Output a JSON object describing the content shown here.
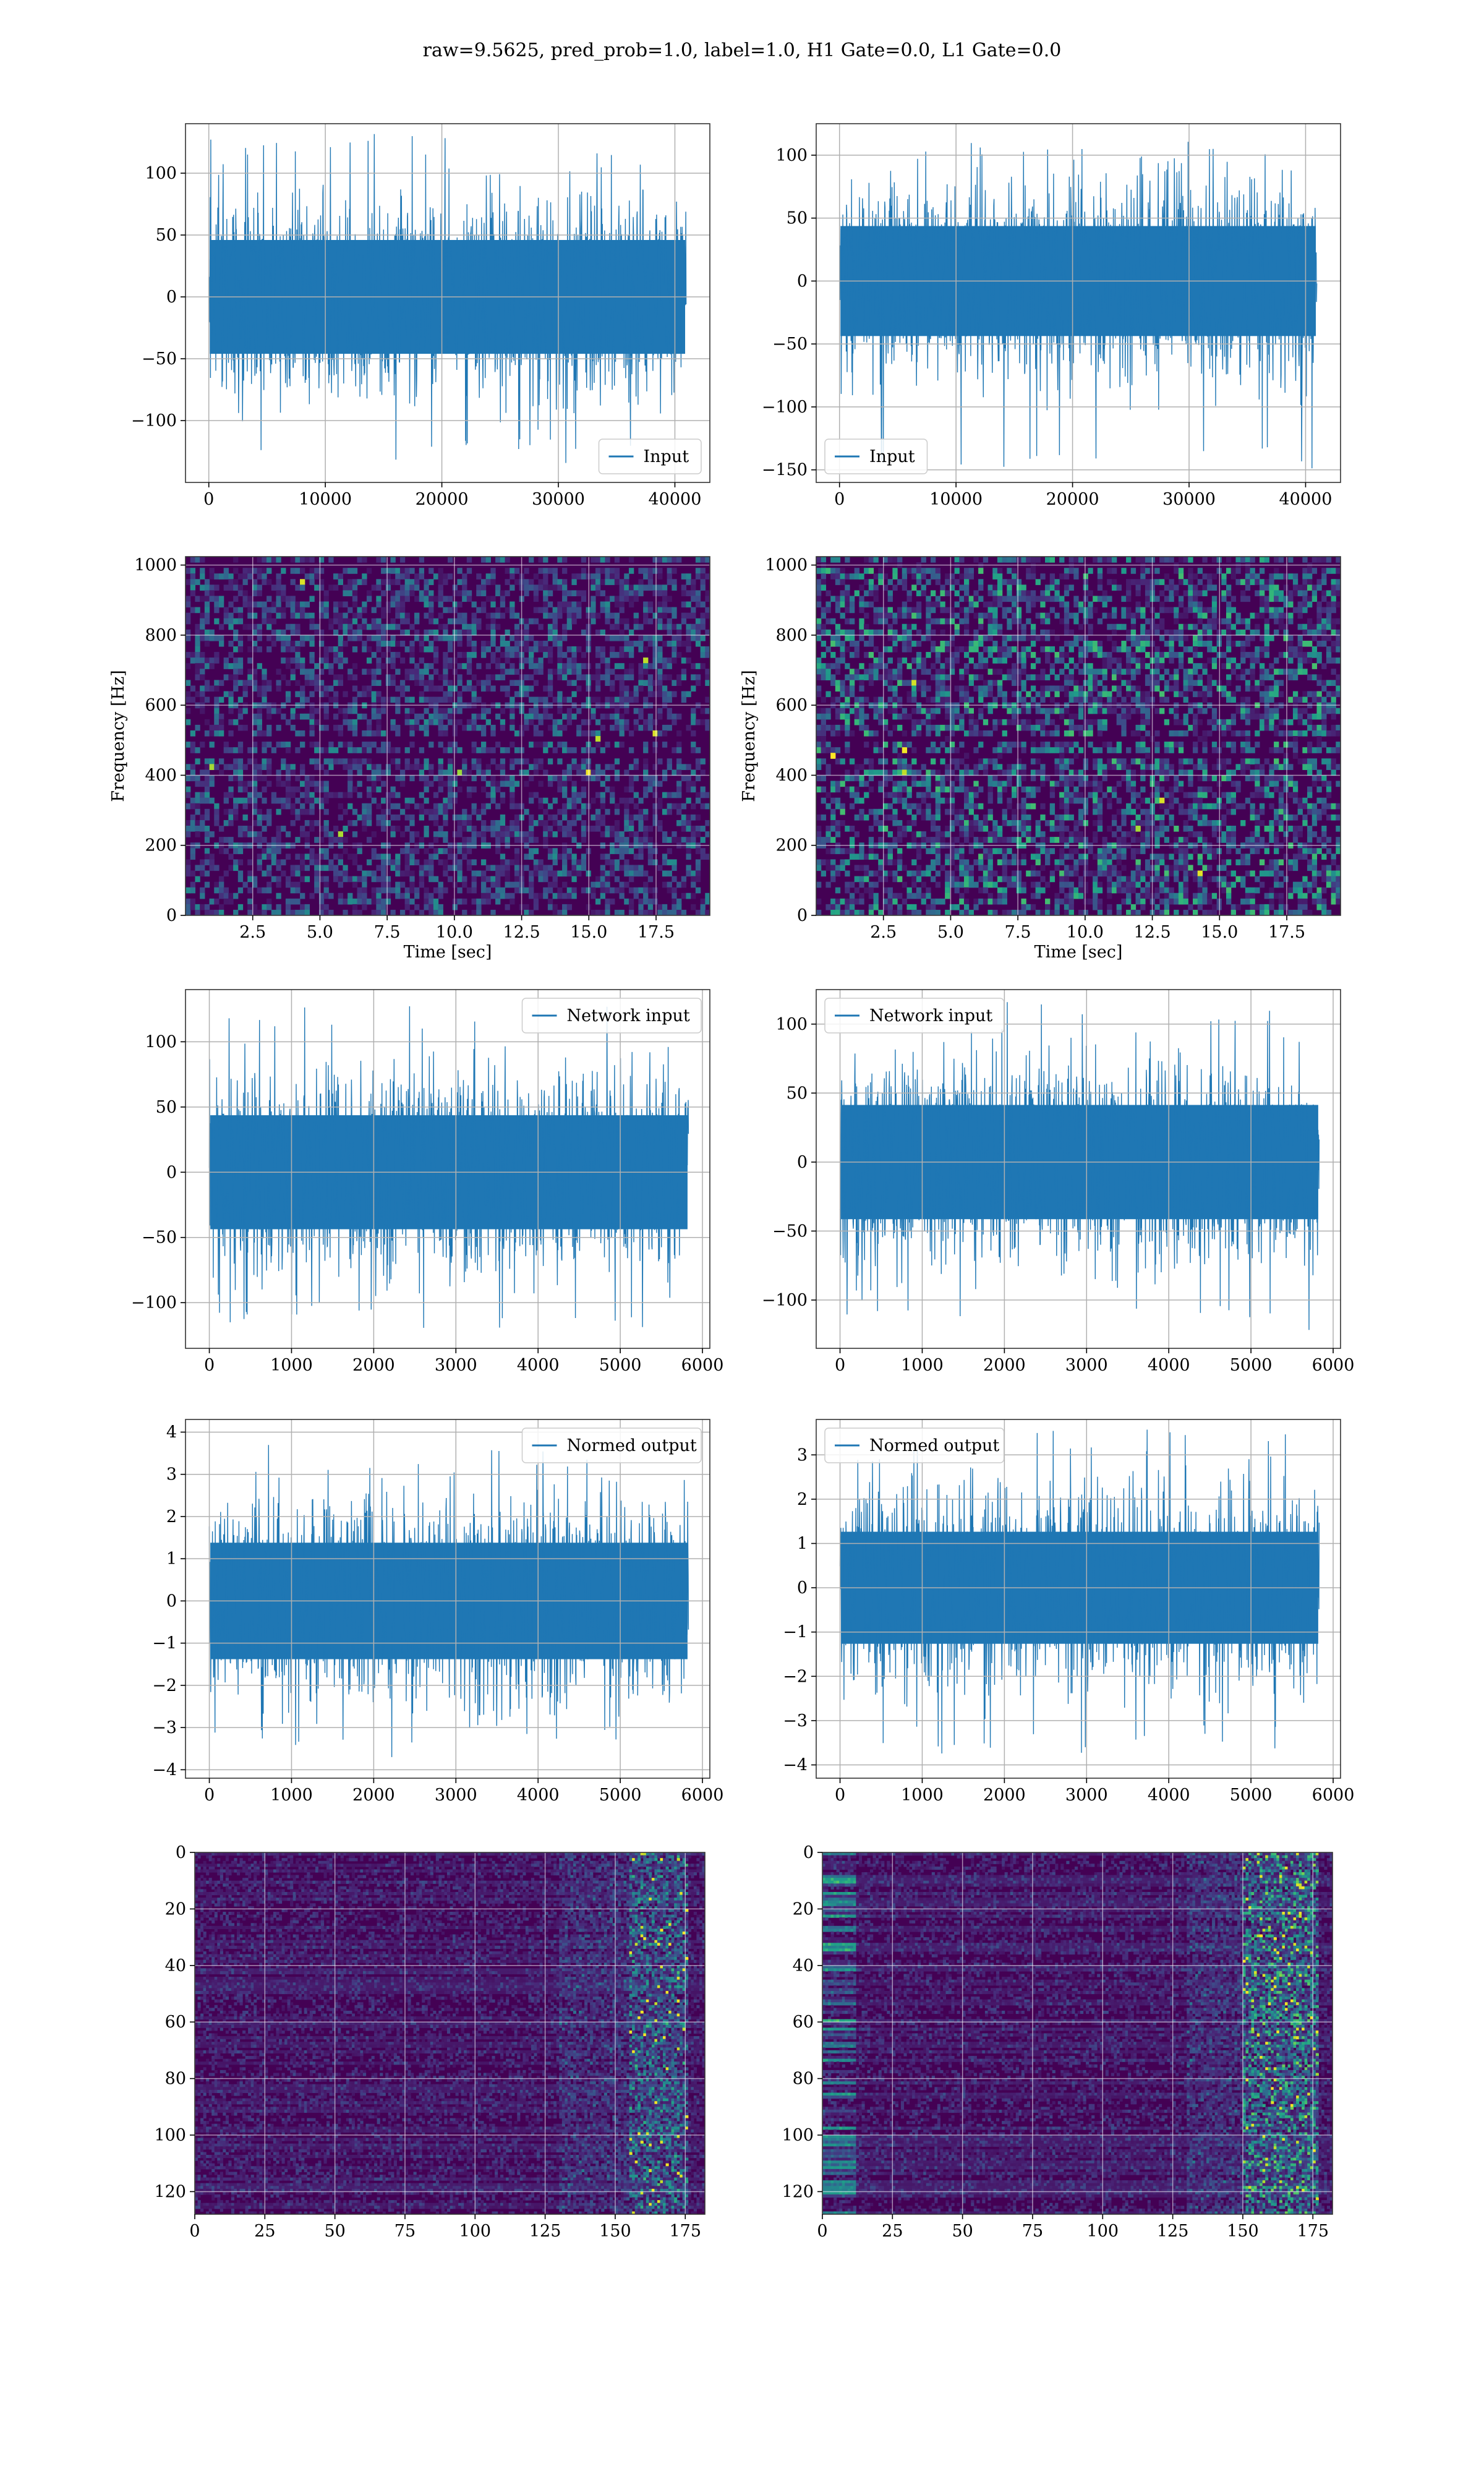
{
  "figure": {
    "title": "raw=9.5625, pred_prob=1.0, label=1.0, H1 Gate=0.0, L1 Gate=0.0"
  },
  "colors": {
    "line": "#1f77b4",
    "grid": "#b0b0b0",
    "viridis_dark": "#440154",
    "viridis_mid": "#3b528b",
    "viridis_teal": "#21918c",
    "viridis_green": "#5ec962",
    "viridis_yellow": "#fde725"
  },
  "chart_data": [
    {
      "id": "h1-input",
      "type": "line",
      "legend": [
        "Input"
      ],
      "legend_position": "lower-right",
      "xlim": [
        -2000,
        43000
      ],
      "ylim": [
        -150,
        140
      ],
      "xticks": [
        0,
        10000,
        20000,
        30000,
        40000
      ],
      "yticks": [
        -100,
        -50,
        0,
        50,
        100
      ],
      "xticklabels": [
        "0",
        "10000",
        "20000",
        "30000",
        "40000"
      ],
      "yticklabels": [
        "−100",
        "−50",
        "0",
        "50",
        "100"
      ],
      "series": [
        {
          "name": "Input",
          "x_range": [
            0,
            40960
          ],
          "core_amplitude": 40,
          "envelope": [
            -95,
            92
          ],
          "peak_max": 132,
          "peak_min": -135
        }
      ],
      "grid": true,
      "xlabel": "",
      "ylabel": ""
    },
    {
      "id": "l1-input",
      "type": "line",
      "legend": [
        "Input"
      ],
      "legend_position": "lower-left",
      "xlim": [
        -2000,
        43000
      ],
      "ylim": [
        -160,
        125
      ],
      "xticks": [
        0,
        10000,
        20000,
        30000,
        40000
      ],
      "yticks": [
        -150,
        -100,
        -50,
        0,
        50,
        100
      ],
      "xticklabels": [
        "0",
        "10000",
        "20000",
        "30000",
        "40000"
      ],
      "yticklabels": [
        "−150",
        "−100",
        "−50",
        "0",
        "50",
        "100"
      ],
      "series": [
        {
          "name": "Input",
          "x_range": [
            0,
            40960
          ],
          "core_amplitude": 38,
          "envelope": [
            -90,
            85
          ],
          "peak_max": 112,
          "peak_min": -150
        }
      ],
      "grid": true,
      "xlabel": "",
      "ylabel": ""
    },
    {
      "id": "h1-spectrogram",
      "type": "heatmap",
      "colormap": "viridis",
      "xlim": [
        0,
        19.5
      ],
      "ylim": [
        0,
        1024
      ],
      "xticks": [
        2.5,
        5.0,
        7.5,
        10.0,
        12.5,
        15.0,
        17.5
      ],
      "yticks": [
        0,
        200,
        400,
        600,
        800,
        1000
      ],
      "xticklabels": [
        "2.5",
        "5.0",
        "7.5",
        "10.0",
        "12.5",
        "15.0",
        "17.5"
      ],
      "yticklabels": [
        "0",
        "200",
        "400",
        "600",
        "800",
        "1000"
      ],
      "xlabel": "Time [sec]",
      "ylabel": "Frequency [Hz]",
      "grid": true,
      "dark_bands_hz": [
        460,
        505,
        1000
      ],
      "intensity": 0.35
    },
    {
      "id": "l1-spectrogram",
      "type": "heatmap",
      "colormap": "viridis",
      "xlim": [
        0,
        19.5
      ],
      "ylim": [
        0,
        1024
      ],
      "xticks": [
        2.5,
        5.0,
        7.5,
        10.0,
        12.5,
        15.0,
        17.5
      ],
      "yticks": [
        0,
        200,
        400,
        600,
        800,
        1000
      ],
      "xticklabels": [
        "2.5",
        "5.0",
        "7.5",
        "10.0",
        "12.5",
        "15.0",
        "17.5"
      ],
      "yticklabels": [
        "0",
        "200",
        "400",
        "600",
        "800",
        "1000"
      ],
      "xlabel": "Time [sec]",
      "ylabel": "Frequency [Hz]",
      "grid": true,
      "dark_bands_hz": [
        460,
        505,
        1000
      ],
      "intensity": 0.5
    },
    {
      "id": "h1-network-input",
      "type": "line",
      "legend": [
        "Network input"
      ],
      "legend_position": "upper-right",
      "xlim": [
        -290,
        6090
      ],
      "ylim": [
        -135,
        140
      ],
      "xticks": [
        0,
        1000,
        2000,
        3000,
        4000,
        5000,
        6000
      ],
      "yticks": [
        -100,
        -50,
        0,
        50,
        100
      ],
      "xticklabels": [
        "0",
        "1000",
        "2000",
        "3000",
        "4000",
        "5000",
        "6000"
      ],
      "yticklabels": [
        "−100",
        "−50",
        "0",
        "50",
        "100"
      ],
      "series": [
        {
          "name": "Network input",
          "x_range": [
            0,
            5830
          ],
          "core_amplitude": 38,
          "envelope": [
            -85,
            85
          ],
          "peak_max": 128,
          "peak_min": -120
        }
      ],
      "grid": true,
      "xlabel": "",
      "ylabel": ""
    },
    {
      "id": "l1-network-input",
      "type": "line",
      "legend": [
        "Network input"
      ],
      "legend_position": "upper-left",
      "xlim": [
        -290,
        6090
      ],
      "ylim": [
        -135,
        125
      ],
      "xticks": [
        0,
        1000,
        2000,
        3000,
        4000,
        5000,
        6000
      ],
      "yticks": [
        -100,
        -50,
        0,
        50,
        100
      ],
      "xticklabels": [
        "0",
        "1000",
        "2000",
        "3000",
        "4000",
        "5000",
        "6000"
      ],
      "yticklabels": [
        "−100",
        "−50",
        "0",
        "50",
        "100"
      ],
      "series": [
        {
          "name": "Network input",
          "x_range": [
            0,
            5830
          ],
          "core_amplitude": 36,
          "envelope": [
            -85,
            80
          ],
          "peak_max": 116,
          "peak_min": -125
        }
      ],
      "grid": true,
      "xlabel": "",
      "ylabel": ""
    },
    {
      "id": "h1-normed-output",
      "type": "line",
      "legend": [
        "Normed output"
      ],
      "legend_position": "upper-right",
      "xlim": [
        -290,
        6090
      ],
      "ylim": [
        -4.2,
        4.3
      ],
      "xticks": [
        0,
        1000,
        2000,
        3000,
        4000,
        5000,
        6000
      ],
      "yticks": [
        -4,
        -3,
        -2,
        -1,
        0,
        1,
        2,
        3,
        4
      ],
      "xticklabels": [
        "0",
        "1000",
        "2000",
        "3000",
        "4000",
        "5000",
        "6000"
      ],
      "yticklabels": [
        "−4",
        "−3",
        "−2",
        "−1",
        "0",
        "1",
        "2",
        "3",
        "4"
      ],
      "series": [
        {
          "name": "Normed output",
          "x_range": [
            0,
            5830
          ],
          "core_amplitude": 1.2,
          "envelope": [
            -2.7,
            2.7
          ],
          "peak_max": 3.7,
          "peak_min": -3.7
        }
      ],
      "grid": true,
      "xlabel": "",
      "ylabel": ""
    },
    {
      "id": "l1-normed-output",
      "type": "line",
      "legend": [
        "Normed output"
      ],
      "legend_position": "upper-left",
      "xlim": [
        -290,
        6090
      ],
      "ylim": [
        -4.3,
        3.8
      ],
      "xticks": [
        0,
        1000,
        2000,
        3000,
        4000,
        5000,
        6000
      ],
      "yticks": [
        -4,
        -3,
        -2,
        -1,
        0,
        1,
        2,
        3
      ],
      "xticklabels": [
        "0",
        "1000",
        "2000",
        "3000",
        "4000",
        "5000",
        "6000"
      ],
      "yticklabels": [
        "−4",
        "−3",
        "−2",
        "−1",
        "0",
        "1",
        "2",
        "3"
      ],
      "series": [
        {
          "name": "Normed output",
          "x_range": [
            0,
            5830
          ],
          "core_amplitude": 1.1,
          "envelope": [
            -2.7,
            2.6
          ],
          "peak_max": 3.6,
          "peak_min": -3.8
        }
      ],
      "grid": true,
      "xlabel": "",
      "ylabel": ""
    },
    {
      "id": "h1-feature-map",
      "type": "heatmap",
      "colormap": "viridis",
      "xlim": [
        0,
        182
      ],
      "ylim": [
        128,
        0
      ],
      "y_inverted": true,
      "xticks": [
        0,
        25,
        50,
        75,
        100,
        125,
        150,
        175
      ],
      "yticks": [
        0,
        20,
        40,
        60,
        80,
        100,
        120
      ],
      "xticklabels": [
        "0",
        "25",
        "50",
        "75",
        "100",
        "125",
        "150",
        "175"
      ],
      "yticklabels": [
        "0",
        "20",
        "40",
        "60",
        "80",
        "100",
        "120"
      ],
      "grid": true,
      "xlabel": "",
      "ylabel": "",
      "bright_columns": [
        155,
        175
      ],
      "intensity": 0.55
    },
    {
      "id": "l1-feature-map",
      "type": "heatmap",
      "colormap": "viridis",
      "xlim": [
        0,
        182
      ],
      "ylim": [
        128,
        0
      ],
      "y_inverted": true,
      "xticks": [
        0,
        25,
        50,
        75,
        100,
        125,
        150,
        175
      ],
      "yticks": [
        0,
        20,
        40,
        60,
        80,
        100,
        120
      ],
      "xticklabels": [
        "0",
        "25",
        "50",
        "75",
        "100",
        "125",
        "150",
        "175"
      ],
      "yticklabels": [
        "0",
        "20",
        "40",
        "60",
        "80",
        "100",
        "120"
      ],
      "grid": true,
      "xlabel": "",
      "ylabel": "",
      "bright_columns": [
        150,
        176
      ],
      "left_band": [
        0,
        12
      ],
      "intensity": 0.75
    }
  ]
}
